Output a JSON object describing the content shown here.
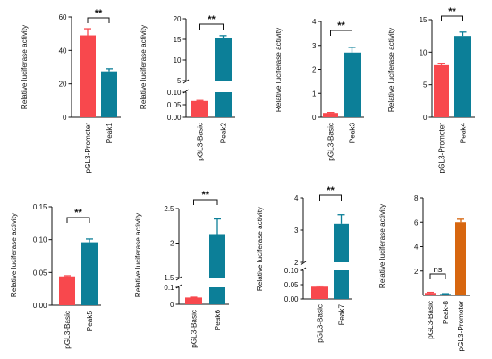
{
  "colors": {
    "red": "#f8484d",
    "teal": "#0c7f98",
    "orange": "#d7660f",
    "axis": "#111111"
  },
  "chart_data": [
    {
      "type": "bar",
      "categories": [
        "pGL3-Promoter",
        "Peak1"
      ],
      "values": [
        49,
        27.5
      ],
      "errors": [
        4,
        1.5
      ],
      "colors": [
        "#f8484d",
        "#0c7f98"
      ],
      "ylabel": "Relative luciferase activity",
      "ylim": [
        0,
        60
      ],
      "yticks": [
        "0",
        "20",
        "40",
        "60"
      ],
      "significance": "**"
    },
    {
      "type": "bar",
      "categories": [
        "pGL3-Basic",
        "Peak2"
      ],
      "values": [
        0.065,
        15.3
      ],
      "errors": [
        0.002,
        0.6
      ],
      "colors": [
        "#f8484d",
        "#0c7f98"
      ],
      "ylabel": "Relative luciferase activity",
      "broken_axis": {
        "lower": [
          0,
          0.1
        ],
        "upper": [
          5,
          20
        ]
      },
      "yticks": [
        "0.00",
        "0.05",
        "0.10",
        "5",
        "10",
        "15",
        "20"
      ],
      "significance": "**"
    },
    {
      "type": "bar",
      "categories": [
        "pGL3-Basic",
        "Peak3"
      ],
      "values": [
        0.18,
        2.7
      ],
      "errors": [
        0.02,
        0.22
      ],
      "colors": [
        "#f8484d",
        "#0c7f98"
      ],
      "ylabel": "Relative luciferase activity",
      "ylim": [
        0,
        4
      ],
      "yticks": [
        "0",
        "1",
        "2",
        "3",
        "4"
      ],
      "significance": "**"
    },
    {
      "type": "bar",
      "categories": [
        "pGL3-Promoter",
        "Peak4"
      ],
      "values": [
        8,
        12.5
      ],
      "errors": [
        0.3,
        0.6
      ],
      "colors": [
        "#f8484d",
        "#0c7f98"
      ],
      "ylabel": "Relative luciferase activity",
      "ylim": [
        0,
        15
      ],
      "yticks": [
        "0",
        "5",
        "10",
        "15"
      ],
      "significance": "**"
    },
    {
      "type": "bar",
      "categories": [
        "pGL3-Basic",
        "Peak5"
      ],
      "values": [
        0.044,
        0.096
      ],
      "errors": [
        0.001,
        0.005
      ],
      "colors": [
        "#f8484d",
        "#0c7f98"
      ],
      "ylabel": "Relative luciferase activity",
      "ylim": [
        0,
        0.15
      ],
      "yticks": [
        "0.00",
        "0.05",
        "0.10",
        "0.15"
      ],
      "significance": "**"
    },
    {
      "type": "bar",
      "categories": [
        "pGL3-Basic",
        "Peak6"
      ],
      "values": [
        0.04,
        2.13
      ],
      "errors": [
        0.002,
        0.22
      ],
      "colors": [
        "#f8484d",
        "#0c7f98"
      ],
      "ylabel": "Relative luciferase activity",
      "broken_axis": {
        "lower": [
          0,
          0.1
        ],
        "upper": [
          1.5,
          2.5
        ]
      },
      "yticks": [
        "0",
        "0.1",
        "1.5",
        "2",
        "2.5"
      ],
      "significance": "**"
    },
    {
      "type": "bar",
      "categories": [
        "pGL3-Basic",
        "Peak7"
      ],
      "values": [
        0.043,
        3.2
      ],
      "errors": [
        0.002,
        0.28
      ],
      "colors": [
        "#f8484d",
        "#0c7f98"
      ],
      "ylabel": "Relative luciferase activity",
      "broken_axis": {
        "lower": [
          0,
          0.1
        ],
        "upper": [
          2,
          4
        ]
      },
      "yticks": [
        "0.00",
        "0.05",
        "0.10",
        "2",
        "3",
        "4"
      ],
      "significance": "**"
    },
    {
      "type": "bar",
      "categories": [
        "pGL3-Basic",
        "Peak-8",
        "pGL3-Promoter"
      ],
      "values": [
        0.2,
        0.12,
        6.0
      ],
      "errors": [
        0.05,
        0.02,
        0.25
      ],
      "colors": [
        "#f8484d",
        "#0c7f98",
        "#d7660f"
      ],
      "ylabel": "Relative luciferase activity",
      "ylim": [
        0,
        8
      ],
      "yticks": [
        "2",
        "4",
        "6",
        "8"
      ],
      "significance": "ns"
    }
  ]
}
